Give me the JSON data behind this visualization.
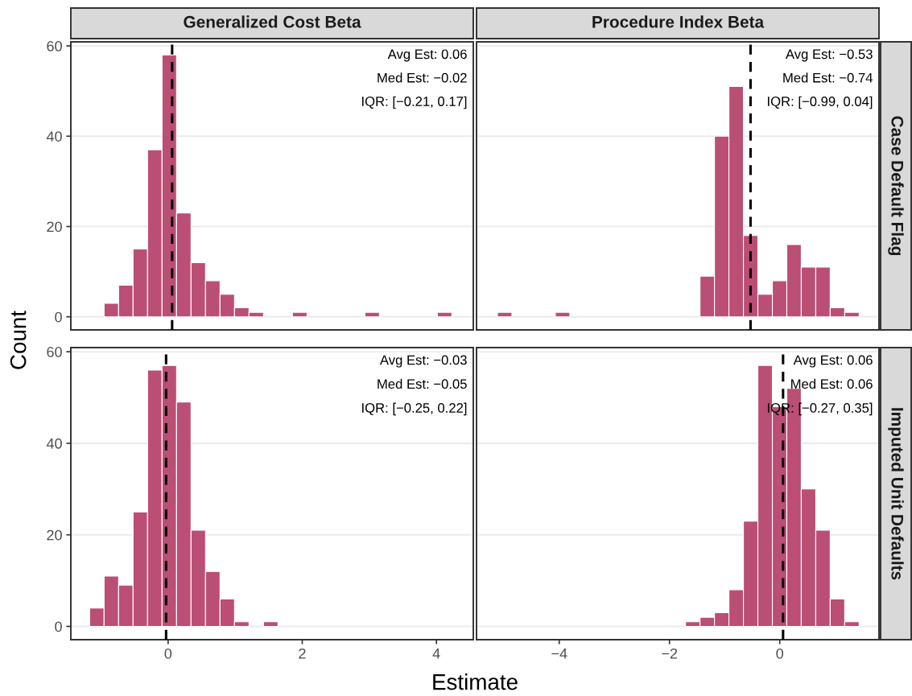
{
  "chart_data": [
    {
      "type": "histogram",
      "title": "Generalized Cost Beta",
      "ylabel": "Count",
      "color": "#bb4e75",
      "bins": [
        -1.17,
        -0.954,
        -0.738,
        -0.522,
        -0.306,
        -0.09,
        0.126,
        0.342,
        0.558,
        0.774,
        0.99,
        1.206,
        1.422,
        1.638,
        1.854,
        2.07,
        2.286,
        2.502,
        2.718,
        2.934,
        3.15,
        3.366,
        3.582,
        3.798,
        4.014,
        4.23
      ],
      "values": [
        0,
        3,
        7,
        15,
        37,
        58,
        23,
        12,
        8,
        5,
        2,
        1,
        0,
        0,
        1,
        0,
        0,
        0,
        0,
        1,
        0,
        0,
        0,
        0,
        1
      ],
      "xlim": [
        -1.45,
        4.55
      ],
      "ylim": [
        -2.9,
        60.9
      ],
      "yticks": [
        0,
        20,
        40,
        60
      ],
      "ref_lines": [
        {
          "axis": "x",
          "value": 0.06,
          "line_style": "dashed",
          "color": "#000000"
        }
      ],
      "annotations": [
        "Avg Est: 0.06",
        "Med Est: −0.02",
        "IQR: [−0.21, 0.17]"
      ],
      "grid": "y",
      "tick_labels": "y"
    },
    {
      "type": "histogram",
      "title": "Procedure Index Beta",
      "y2label": "Case Default Flag",
      "color": "#bb4e75",
      "bins": [
        -5.12,
        -4.858,
        -4.595,
        -4.333,
        -4.07,
        -3.808,
        -3.546,
        -3.283,
        -3.021,
        -2.758,
        -2.496,
        -2.234,
        -1.971,
        -1.709,
        -1.446,
        -1.184,
        -0.922,
        -0.659,
        -0.397,
        -0.134,
        0.128,
        0.39,
        0.653,
        0.915,
        1.178,
        1.44
      ],
      "values": [
        1,
        0,
        0,
        0,
        1,
        0,
        0,
        0,
        0,
        0,
        0,
        0,
        0,
        0,
        9,
        40,
        51,
        18,
        5,
        8,
        16,
        11,
        11,
        2,
        1
      ],
      "xlim": [
        -5.5,
        1.8
      ],
      "ylim": [
        -2.9,
        60.9
      ],
      "yticks": [
        0,
        20,
        40,
        60
      ],
      "ref_lines": [
        {
          "axis": "x",
          "value": -0.53,
          "line_style": "dashed",
          "color": "#000000"
        }
      ],
      "annotations": [
        "Avg Est: −0.53",
        "Med Est: −0.74",
        "IQR: [−0.99, 0.04]"
      ],
      "grid": "y",
      "tick_labels": false
    },
    {
      "type": "histogram",
      "xlabel": "Estimate",
      "color": "#bb4e75",
      "bins": [
        -1.17,
        -0.954,
        -0.738,
        -0.522,
        -0.306,
        -0.09,
        0.126,
        0.342,
        0.558,
        0.774,
        0.99,
        1.206,
        1.422,
        1.638,
        1.854,
        2.07,
        2.286,
        2.502,
        2.718,
        2.934,
        3.15,
        3.366,
        3.582,
        3.798,
        4.014,
        4.23
      ],
      "values": [
        4,
        11,
        9,
        25,
        56,
        57,
        49,
        21,
        12,
        6,
        1,
        0,
        1,
        0,
        0,
        0,
        0,
        0,
        0,
        0,
        0,
        0,
        0,
        0,
        0
      ],
      "xlim": [
        -1.45,
        4.55
      ],
      "xticks": [
        0,
        2,
        4
      ],
      "ylim": [
        -2.9,
        60.9
      ],
      "yticks": [
        0,
        20,
        40,
        60
      ],
      "ref_lines": [
        {
          "axis": "x",
          "value": -0.03,
          "line_style": "dashed",
          "color": "#000000"
        }
      ],
      "annotations": [
        "Avg Est: −0.03",
        "Med Est: −0.05",
        "IQR: [−0.25, 0.22]"
      ],
      "grid": "y"
    },
    {
      "type": "histogram",
      "y2label": "Imputed Unit Defaults",
      "color": "#bb4e75",
      "bins": [
        -5.12,
        -4.858,
        -4.595,
        -4.333,
        -4.07,
        -3.808,
        -3.546,
        -3.283,
        -3.021,
        -2.758,
        -2.496,
        -2.234,
        -1.971,
        -1.709,
        -1.446,
        -1.184,
        -0.922,
        -0.659,
        -0.397,
        -0.134,
        0.128,
        0.39,
        0.653,
        0.915,
        1.178,
        1.44
      ],
      "values": [
        0,
        0,
        0,
        0,
        0,
        0,
        0,
        0,
        0,
        0,
        0,
        0,
        0,
        1,
        2,
        3,
        8,
        23,
        57,
        48,
        52,
        30,
        21,
        6,
        1
      ],
      "xlim": [
        -5.5,
        1.8
      ],
      "xticks": [
        {
          "value": -4,
          "label": "−4"
        },
        {
          "value": -2,
          "label": "−2"
        },
        0
      ],
      "ylim": [
        -2.9,
        60.9
      ],
      "yticks": [
        0,
        20,
        40,
        60
      ],
      "ref_lines": [
        {
          "axis": "x",
          "value": 0.06,
          "line_style": "dashed",
          "color": "#000000"
        }
      ],
      "annotations": [
        "Avg Est: 0.06",
        "Med Est: 0.06",
        "IQR: [−0.27, 0.35]"
      ],
      "grid": "y",
      "tick_labels": "x"
    }
  ]
}
